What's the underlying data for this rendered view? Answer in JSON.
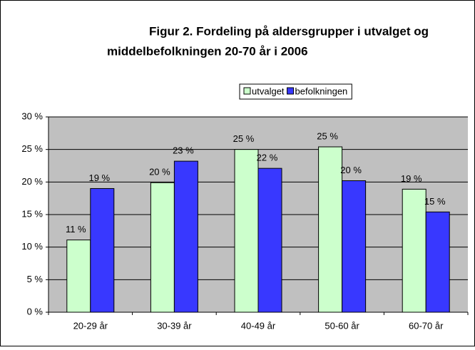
{
  "chart_data": {
    "type": "bar",
    "title": [
      "Figur 2.  Fordeling på aldersgrupper i utvalget og",
      "middelbefolkningen 20-70 år i 2006"
    ],
    "categories": [
      "20-29 år",
      "30-39 år",
      "40-49 år",
      "50-60 år",
      "60-70 år"
    ],
    "series": [
      {
        "name": "utvalget",
        "color": "#ccffcc",
        "values": [
          11.1,
          19.9,
          25.0,
          25.4,
          18.9
        ],
        "value_labels": [
          "11 %",
          "20 %",
          "25 %",
          "25 %",
          "19 %"
        ]
      },
      {
        "name": "befolkningen",
        "color": "#3838ff",
        "values": [
          19.0,
          23.2,
          22.1,
          20.2,
          15.4
        ],
        "value_labels": [
          "19 %",
          "23 %",
          "22 %",
          "20 %",
          "15 %"
        ]
      }
    ],
    "ylim": [
      0,
      30
    ],
    "yticks": [
      {
        "value": 0,
        "label": "0 %"
      },
      {
        "value": 5,
        "label": "5 %"
      },
      {
        "value": 10,
        "label": "10 %"
      },
      {
        "value": 15,
        "label": "15 %"
      },
      {
        "value": 20,
        "label": "20 %"
      },
      {
        "value": 25,
        "label": "25 %"
      },
      {
        "value": 30,
        "label": "30 %"
      }
    ],
    "grid": true,
    "legend": "top"
  }
}
